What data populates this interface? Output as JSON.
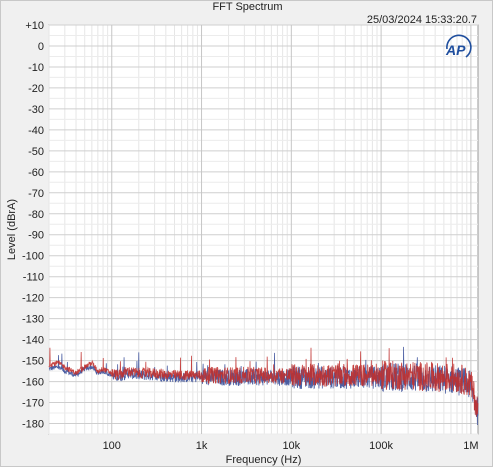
{
  "window": {
    "title": "FFT Spectrum",
    "timestamp": "25/03/2024 15:33:20.7"
  },
  "logo": {
    "text": "AP",
    "color": "#1f4e9e"
  },
  "chart_data": {
    "type": "line",
    "title": "FFT Spectrum",
    "xlabel": "Frequency (Hz)",
    "ylabel": "Level (dBrA)",
    "x_scale": "log",
    "xlim": [
      20,
      1200000
    ],
    "ylim": [
      -185,
      10
    ],
    "grid": true,
    "y_ticks": [
      10,
      0,
      -10,
      -20,
      -30,
      -40,
      -50,
      -60,
      -70,
      -80,
      -90,
      -100,
      -110,
      -120,
      -130,
      -140,
      -150,
      -160,
      -170,
      -180
    ],
    "y_tick_labels": [
      "+10",
      "0",
      "-10",
      "-20",
      "-30",
      "-40",
      "-50",
      "-60",
      "-70",
      "-80",
      "-90",
      "-100",
      "-110",
      "-120",
      "-130",
      "-140",
      "-150",
      "-160",
      "-170",
      "-180"
    ],
    "x_ticks": [
      100,
      1000,
      10000,
      100000,
      1000000
    ],
    "x_tick_labels": [
      "100",
      "1k",
      "10k",
      "100k",
      "1M"
    ],
    "series": [
      {
        "color": "#3a4f9a",
        "x": [
          20,
          25,
          30,
          40,
          50,
          60,
          70,
          80,
          100,
          120,
          150,
          200,
          300,
          500,
          700,
          1000,
          2000,
          5000,
          10000,
          20000,
          50000,
          100000,
          200000,
          400000,
          600000,
          800000,
          1000000,
          1200000
        ],
        "y": [
          -154,
          -153,
          -155,
          -157,
          -154,
          -153,
          -156,
          -155,
          -157,
          -158,
          -156,
          -157,
          -157,
          -158,
          -158,
          -158,
          -158,
          -158,
          -158,
          -158,
          -158,
          -158,
          -158,
          -159,
          -159,
          -160,
          -162,
          -175
        ]
      },
      {
        "color": "#c0302e",
        "x": [
          20,
          25,
          30,
          40,
          50,
          60,
          70,
          80,
          100,
          120,
          150,
          200,
          300,
          500,
          700,
          1000,
          2000,
          5000,
          10000,
          20000,
          50000,
          100000,
          200000,
          400000,
          600000,
          800000,
          1000000,
          1200000
        ],
        "y": [
          -152,
          -151,
          -153,
          -156,
          -153,
          -151,
          -155,
          -154,
          -156,
          -157,
          -155,
          -156,
          -156,
          -157,
          -157,
          -157,
          -157,
          -157,
          -157,
          -157,
          -157,
          -157,
          -157,
          -158,
          -158,
          -159,
          -161,
          -174
        ]
      }
    ]
  }
}
